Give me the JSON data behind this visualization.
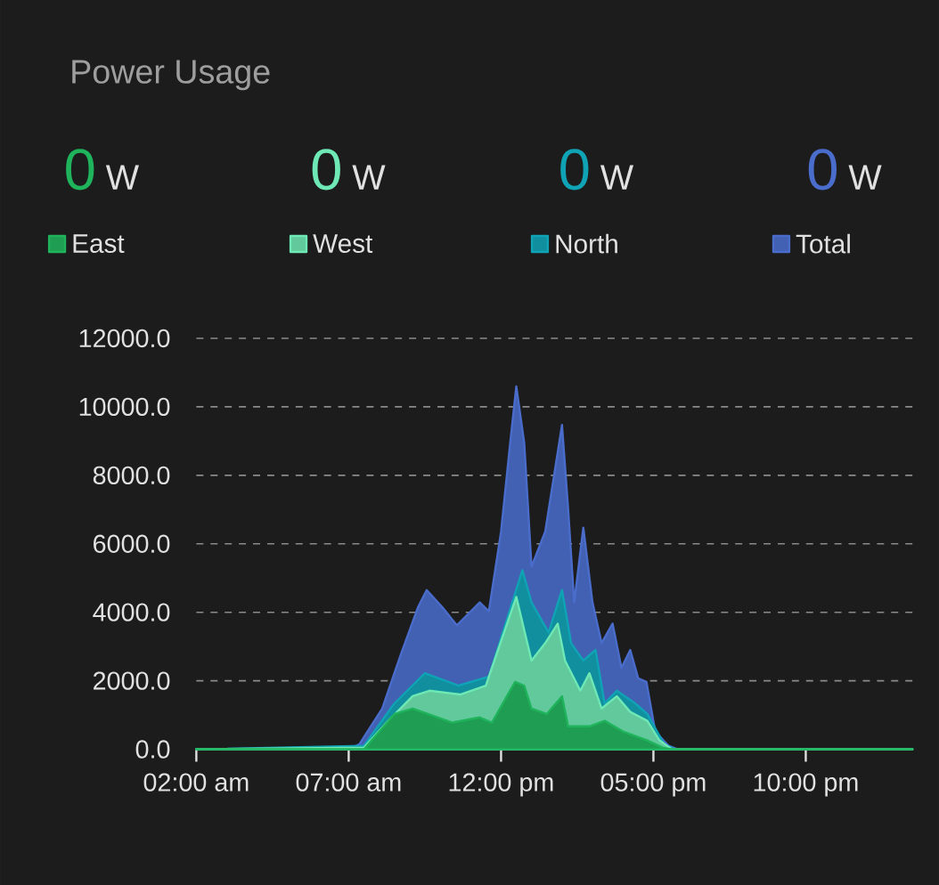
{
  "chart_data": {
    "type": "area",
    "title": "Power Usage",
    "annotations": [
      "0",
      "W",
      "0",
      "W",
      "0",
      "W",
      "0",
      "W"
    ],
    "series": [
      {
        "name": "East",
        "color": "#1fb45c",
        "x": [
          2,
          7.5,
          8.5,
          9.1,
          9.6,
          10.4,
          11.3,
          11.7,
          12.46,
          12.76,
          13.0,
          13.5,
          14.0,
          14.2,
          14.9,
          15.4,
          16.0,
          16.8,
          17.3,
          17.6,
          25.5
        ],
        "values": [
          0,
          0,
          1030,
          1190,
          1030,
          780,
          930,
          780,
          1970,
          1860,
          1190,
          1030,
          1550,
          670,
          670,
          830,
          520,
          260,
          50,
          0,
          0
        ]
      },
      {
        "name": "West",
        "color": "#6ee8b4",
        "x": [
          2,
          7.5,
          8.3,
          9.1,
          9.65,
          10.66,
          11.5,
          12.3,
          12.5,
          13.0,
          13.45,
          13.86,
          14.1,
          14.6,
          14.9,
          15.3,
          15.8,
          16.24,
          16.8,
          17.2,
          17.6,
          25.5
        ],
        "values": [
          0,
          50,
          830,
          1550,
          1710,
          1600,
          1860,
          3930,
          4450,
          2590,
          3100,
          3670,
          2590,
          1710,
          2220,
          1190,
          1550,
          1090,
          830,
          260,
          0,
          0
        ]
      },
      {
        "name": "North",
        "color": "#0fa3b5",
        "x": [
          2,
          7.5,
          8.5,
          9.5,
          10.6,
          11.6,
          12.7,
          13.0,
          13.56,
          14.0,
          14.3,
          14.7,
          15.1,
          15.4,
          15.8,
          16.4,
          16.8,
          17.35,
          17.7,
          25.5
        ],
        "values": [
          0,
          100,
          1340,
          2220,
          1860,
          2120,
          5230,
          4290,
          3410,
          4650,
          3100,
          2590,
          2900,
          1340,
          1710,
          1340,
          1030,
          150,
          0,
          0
        ]
      },
      {
        "name": "Total",
        "color": "#4a6dcc",
        "x": [
          2,
          7.0,
          7.35,
          8.1,
          8.7,
          9.27,
          9.56,
          10.08,
          10.55,
          11.3,
          11.6,
          12.0,
          12.3,
          12.5,
          12.76,
          13.0,
          13.45,
          14.0,
          14.2,
          14.4,
          14.7,
          15.0,
          15.3,
          15.66,
          15.95,
          16.24,
          16.5,
          16.77,
          17.06,
          17.5,
          17.8,
          25.5
        ],
        "values": [
          0,
          0,
          150,
          1190,
          2740,
          4140,
          4650,
          4140,
          3620,
          4290,
          4030,
          6360,
          8950,
          10600,
          8950,
          5330,
          6360,
          9470,
          7040,
          4290,
          6470,
          4290,
          3100,
          3670,
          2380,
          2900,
          2070,
          1970,
          520,
          100,
          0,
          0
        ]
      }
    ],
    "xlim": [
      2,
      25.5
    ],
    "xticks": [
      {
        "value": 2,
        "label": "02:00 am"
      },
      {
        "value": 7,
        "label": "07:00 am"
      },
      {
        "value": 12,
        "label": "12:00 pm"
      },
      {
        "value": 17,
        "label": "05:00 pm"
      },
      {
        "value": 22,
        "label": "10:00 pm"
      }
    ],
    "ylim": [
      0,
      12000
    ],
    "yticks": [
      {
        "value": 0,
        "label": "0.0"
      },
      {
        "value": 2000,
        "label": "2000.0"
      },
      {
        "value": 4000,
        "label": "4000.0"
      },
      {
        "value": 6000,
        "label": "6000.0"
      },
      {
        "value": 8000,
        "label": "8000.0"
      },
      {
        "value": 10000,
        "label": "10000.0"
      },
      {
        "value": 12000,
        "label": "12000.0"
      }
    ],
    "grid": "y",
    "legend": "top",
    "line_style": "solid",
    "marker": "none"
  }
}
